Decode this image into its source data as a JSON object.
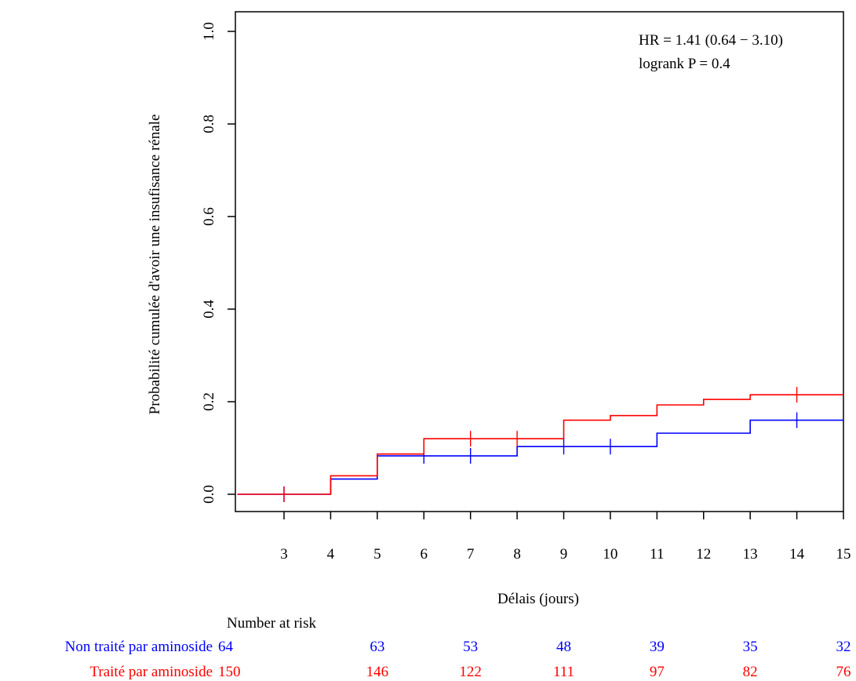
{
  "chart_data": {
    "type": "line",
    "subtype": "kaplan-meier cumulative incidence (step)",
    "ylabel": "Probabilité cumulée d'avoir une insufisance rénale",
    "xlabel": "Délais (jours)",
    "xlim": [
      2,
      15
    ],
    "ylim": [
      0,
      1.0
    ],
    "x_ticks": [
      "3",
      "4",
      "5",
      "6",
      "7",
      "8",
      "9",
      "10",
      "11",
      "12",
      "13",
      "14",
      "15"
    ],
    "y_ticks": [
      "0.0",
      "0.2",
      "0.4",
      "0.6",
      "0.8",
      "1.0"
    ],
    "grid": false,
    "annotations": [
      "HR = 1.41 (0.64 − 3.10)",
      "logrank P = 0.4"
    ],
    "series": [
      {
        "name": "Non traité par aminoside",
        "color": "#0000ff",
        "steps": [
          [
            2,
            0
          ],
          [
            4,
            0.033
          ],
          [
            5,
            0.083
          ],
          [
            8,
            0.103
          ],
          [
            11,
            0.132
          ],
          [
            13,
            0.16
          ],
          [
            15,
            0.16
          ]
        ],
        "censor_x": [
          3,
          6,
          7,
          9,
          10,
          14
        ]
      },
      {
        "name": "Traité par aminoside",
        "color": "#ff0000",
        "steps": [
          [
            2,
            0
          ],
          [
            4,
            0.04
          ],
          [
            5,
            0.087
          ],
          [
            6,
            0.12
          ],
          [
            9,
            0.16
          ],
          [
            10,
            0.17
          ],
          [
            11,
            0.193
          ],
          [
            12,
            0.205
          ],
          [
            13,
            0.215
          ],
          [
            15,
            0.215
          ]
        ],
        "censor_x": [
          3,
          7,
          8,
          14
        ]
      }
    ],
    "risk_table": {
      "title": "Number at risk",
      "time_points": [
        3,
        5,
        7,
        9,
        11,
        13,
        15
      ],
      "rows": [
        {
          "label": "Non traité par aminoside",
          "color": "#0000ff",
          "values": [
            "64",
            "63",
            "53",
            "48",
            "39",
            "35",
            "32"
          ]
        },
        {
          "label": "Traité par aminoside",
          "color": "#ff0000",
          "values": [
            "150",
            "146",
            "122",
            "111",
            "97",
            "82",
            "76"
          ]
        }
      ]
    }
  }
}
